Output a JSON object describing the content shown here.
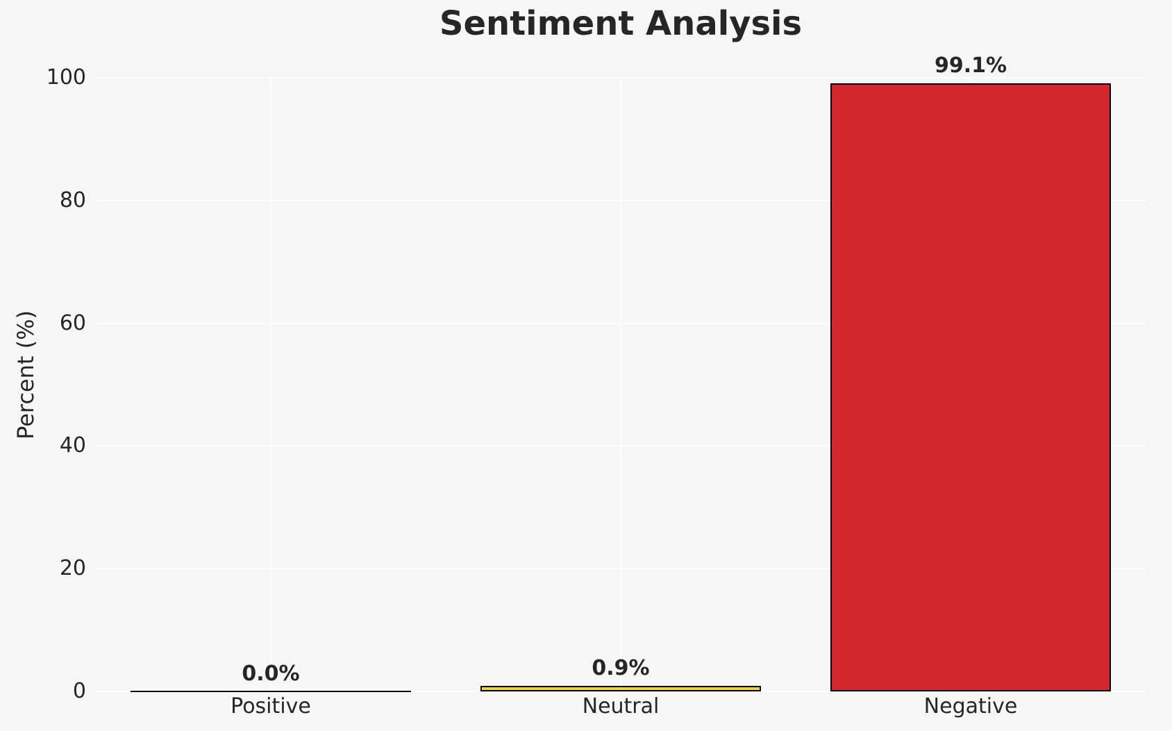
{
  "chart_data": {
    "type": "bar",
    "title": "Sentiment Analysis",
    "xlabel": "",
    "ylabel": "Percent (%)",
    "categories": [
      "Positive",
      "Neutral",
      "Negative"
    ],
    "values": [
      0.0,
      0.9,
      99.1
    ],
    "value_labels": [
      "0.0%",
      "0.9%",
      "99.1%"
    ],
    "bar_colors": [
      null,
      "#f4d03f",
      "#d2282d"
    ],
    "bar_edge_color": "#000000",
    "ylim": [
      0,
      100
    ],
    "yticks": [
      0,
      20,
      40,
      60,
      80,
      100
    ],
    "grid": "on",
    "legend": "none",
    "colors": {
      "background": "#f6f6f7",
      "gridline": "#ffffff",
      "text": "#262626"
    }
  }
}
